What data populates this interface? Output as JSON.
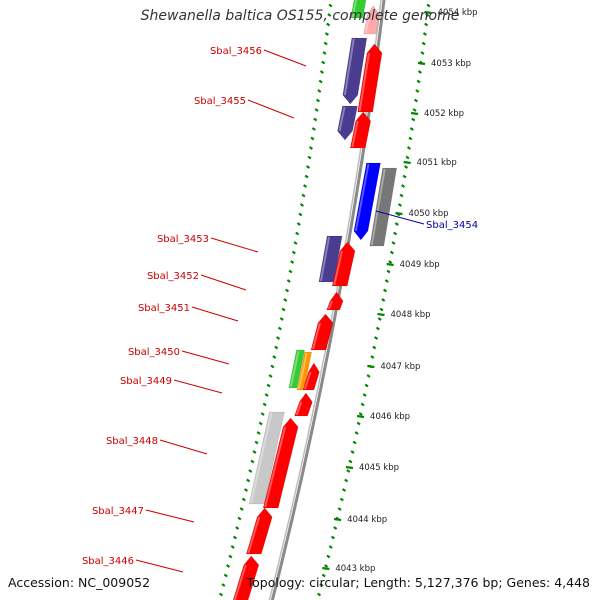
{
  "title": "Shewanella baltica OS155, complete genome",
  "accession": "Accession: NC_009052",
  "topology": "Topology: circular; Length: 5,127,376 bp; Genes: 4,448",
  "colors": {
    "dark_label": "#cc0000",
    "blue_label": "#000099",
    "cds_forward": "#ff0000",
    "cds_reverse": "#4a3d8f",
    "highlight": "#0000ff",
    "gray": "#777777",
    "light_gray": "#c8c8c8",
    "green": "#33cc33",
    "orange": "#ff9900",
    "pink": "#ffaaaa",
    "tick_green": "#008800"
  },
  "ticks": [
    {
      "label": "4054 kbp"
    },
    {
      "label": "4053 kbp"
    },
    {
      "label": "4052 kbp"
    },
    {
      "label": "4051 kbp"
    },
    {
      "label": "4050 kbp"
    },
    {
      "label": "4049 kbp"
    },
    {
      "label": "4048 kbp"
    },
    {
      "label": "4047 kbp"
    },
    {
      "label": "4046 kbp"
    },
    {
      "label": "4045 kbp"
    },
    {
      "label": "4044 kbp"
    },
    {
      "label": "4043 kbp"
    }
  ],
  "gene_labels": [
    {
      "name": "Sbal_3456",
      "color": "dark_label"
    },
    {
      "name": "Sbal_3455",
      "color": "dark_label"
    },
    {
      "name": "Sbal_3454",
      "color": "blue_label"
    },
    {
      "name": "Sbal_3453",
      "color": "dark_label"
    },
    {
      "name": "Sbal_3452",
      "color": "dark_label"
    },
    {
      "name": "Sbal_3451",
      "color": "dark_label"
    },
    {
      "name": "Sbal_3450",
      "color": "dark_label"
    },
    {
      "name": "Sbal_3449",
      "color": "dark_label"
    },
    {
      "name": "Sbal_3448",
      "color": "dark_label"
    },
    {
      "name": "Sbal_3447",
      "color": "dark_label"
    },
    {
      "name": "Sbal_3446",
      "color": "dark_label"
    }
  ]
}
